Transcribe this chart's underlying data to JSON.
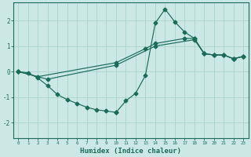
{
  "xlabel": "Humidex (Indice chaleur)",
  "bg_color": "#cce8e4",
  "grid_color": "#aad4cc",
  "line_color": "#1a6b5a",
  "xlim": [
    -0.5,
    23.5
  ],
  "ylim": [
    -2.6,
    2.7
  ],
  "xticks": [
    0,
    1,
    2,
    3,
    4,
    5,
    6,
    7,
    8,
    9,
    10,
    11,
    12,
    13,
    14,
    15,
    16,
    17,
    18,
    19,
    20,
    21,
    22,
    23
  ],
  "yticks": [
    -2,
    -1,
    0,
    1,
    2
  ],
  "series_jagged_x": [
    0,
    1,
    2,
    3,
    4,
    5,
    6,
    7,
    8,
    9,
    10,
    10,
    11,
    12,
    13,
    14,
    15,
    16,
    17,
    18,
    19,
    20,
    21,
    22,
    23
  ],
  "series_jagged_y": [
    0,
    -0.05,
    -0.25,
    -0.55,
    -0.9,
    -1.1,
    -1.25,
    -1.4,
    -1.5,
    -1.55,
    -1.6,
    -1.6,
    -1.15,
    -0.85,
    -0.15,
    1.9,
    2.45,
    1.95,
    1.55,
    1.3,
    0.7,
    0.65,
    0.65,
    0.5,
    0.6
  ],
  "series_line1_x": [
    0,
    2,
    10,
    13,
    14,
    17,
    18,
    19,
    20,
    21,
    22,
    23
  ],
  "series_line1_y": [
    0,
    -0.2,
    0.35,
    0.9,
    1.1,
    1.3,
    1.3,
    0.7,
    0.65,
    0.65,
    0.5,
    0.6
  ],
  "series_line2_x": [
    0,
    3,
    10,
    14,
    18,
    19,
    20,
    21,
    22,
    23
  ],
  "series_line2_y": [
    0,
    -0.3,
    0.25,
    1.0,
    1.25,
    0.7,
    0.65,
    0.65,
    0.5,
    0.6
  ]
}
